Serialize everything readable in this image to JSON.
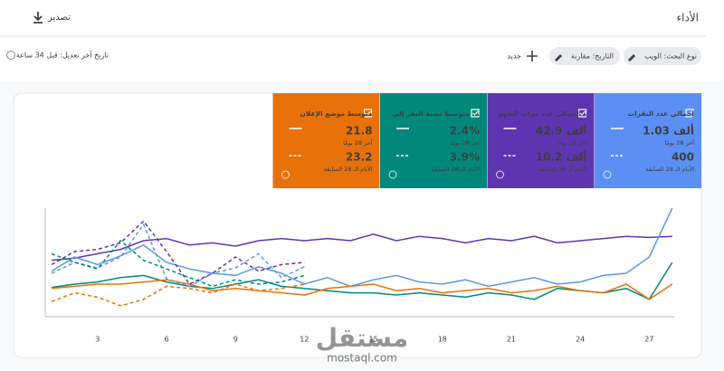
{
  "header": {
    "title": "الأداء",
    "export": "تصدير"
  },
  "filters": {
    "search_type": "نوع البحث: الويب",
    "date": "التاريخ: مقارنة",
    "new": "جديد",
    "last_updated": "تاريخ آخر تعديل: قبل 34 ساعة"
  },
  "cards": [
    {
      "title": "إجمالي عدد النقرات",
      "value": "1.03 ألف",
      "period": "آخر 28 يومًا",
      "compare_value": "400",
      "compare_period": "الأيام الـ 28 السابقة",
      "color": "#5b8ff4"
    },
    {
      "title": "إجمالي عدد مرات الظهو...",
      "value": "42.9 ألف",
      "period": "آخر 28 يومًا",
      "compare_value": "10.2 ألف",
      "compare_period": "الأيام الـ 28 السابقة",
      "color": "#5e35b1"
    },
    {
      "title": "متوسط نسبة النقر إلى ...",
      "value": "2.4%",
      "period": "آخر 28 يومًا",
      "compare_value": "3.9%",
      "compare_period": "الأيام الـ 28 السابقة",
      "color": "#00897b"
    },
    {
      "title": "متوسط موضع الإعلان",
      "value": "21.8",
      "period": "آخر 28 يومًا",
      "compare_value": "23.2",
      "compare_period": "الأيام الـ 28 السابقة",
      "color": "#e8710a"
    }
  ],
  "chart_data": {
    "type": "line",
    "x": [
      1,
      2,
      3,
      4,
      5,
      6,
      7,
      8,
      9,
      10,
      11,
      12,
      13,
      14,
      15,
      16,
      17,
      18,
      19,
      20,
      21,
      22,
      23,
      24,
      25,
      26,
      27,
      28
    ],
    "xlim": [
      1,
      28
    ],
    "xticks": [
      3,
      6,
      9,
      12,
      15,
      18,
      21,
      24,
      27
    ],
    "ylim": [
      0,
      100
    ],
    "series": [
      {
        "color": "#5e35b1",
        "dashed": false,
        "values": [
          52,
          54,
          58,
          62,
          70,
          72,
          66,
          68,
          65,
          70,
          72,
          70,
          72,
          70,
          76,
          70,
          74,
          72,
          68,
          72,
          70,
          74,
          68,
          70,
          72,
          74,
          73,
          74
        ]
      },
      {
        "color": "#5e97e6",
        "dashed": false,
        "values": [
          42,
          55,
          48,
          56,
          66,
          50,
          44,
          40,
          38,
          46,
          40,
          30,
          36,
          28,
          34,
          38,
          32,
          30,
          34,
          28,
          32,
          36,
          30,
          32,
          38,
          40,
          55,
          100
        ]
      },
      {
        "color": "#00897b",
        "dashed": false,
        "values": [
          27,
          30,
          32,
          36,
          38,
          32,
          28,
          26,
          30,
          34,
          28,
          26,
          24,
          22,
          22,
          20,
          22,
          20,
          18,
          22,
          20,
          16,
          26,
          24,
          22,
          26,
          16,
          50
        ]
      },
      {
        "color": "#e8710a",
        "dashed": false,
        "values": [
          26,
          28,
          30,
          30,
          32,
          34,
          30,
          24,
          26,
          24,
          22,
          20,
          26,
          28,
          30,
          24,
          26,
          22,
          24,
          26,
          22,
          24,
          28,
          24,
          22,
          30,
          16,
          30
        ]
      },
      {
        "color": "#5e97e6",
        "dashed": true,
        "values": [
          40,
          50,
          45,
          55,
          85,
          35,
          28,
          40,
          45,
          58,
          36,
          46,
          null,
          null,
          null,
          null,
          null,
          null,
          null,
          null,
          null,
          null,
          null,
          null,
          null,
          null,
          null,
          null
        ]
      },
      {
        "color": "#5e35b1",
        "dashed": true,
        "values": [
          48,
          60,
          62,
          68,
          88,
          60,
          30,
          40,
          55,
          42,
          48,
          50,
          null,
          null,
          null,
          null,
          null,
          null,
          null,
          null,
          null,
          null,
          null,
          null,
          null,
          null,
          null,
          null
        ]
      },
      {
        "color": "#00897b",
        "dashed": true,
        "values": [
          58,
          50,
          44,
          70,
          52,
          44,
          36,
          28,
          34,
          30,
          32,
          38,
          null,
          null,
          null,
          null,
          null,
          null,
          null,
          null,
          null,
          null,
          null,
          null,
          null,
          null,
          null,
          null
        ]
      },
      {
        "color": "#e8710a",
        "dashed": true,
        "values": [
          14,
          22,
          18,
          10,
          16,
          28,
          26,
          22,
          30,
          24,
          26,
          30,
          null,
          null,
          null,
          null,
          null,
          null,
          null,
          null,
          null,
          null,
          null,
          null,
          null,
          null,
          null,
          null
        ]
      }
    ]
  },
  "watermark": {
    "name": "مستقل",
    "site": "mostaql.com"
  }
}
